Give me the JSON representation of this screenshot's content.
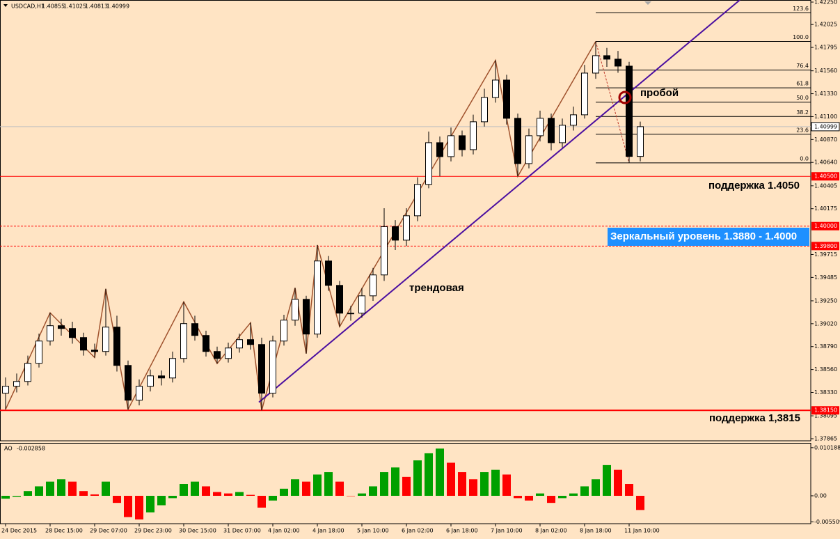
{
  "chart_data": {
    "type": "candlestick",
    "title": "USDCAD,H1",
    "header": {
      "open": 1.40855,
      "high": 1.41025,
      "low": 1.40813,
      "close": 1.40999
    },
    "categories": [
      "24 Dec 2015",
      null,
      null,
      null,
      "28 Dec 15:00",
      null,
      null,
      null,
      "29 Dec 07:00",
      null,
      null,
      null,
      "29 Dec 23:00",
      null,
      null,
      null,
      "30 Dec 15:00",
      null,
      null,
      null,
      "31 Dec 07:00",
      null,
      null,
      null,
      "4 Jan 02:00",
      null,
      null,
      null,
      "4 Jan 18:00",
      null,
      null,
      null,
      "5 Jan 10:00",
      null,
      null,
      null,
      "6 Jan 02:00",
      null,
      null,
      null,
      "6 Jan 18:00",
      null,
      null,
      null,
      "7 Jan 10:00",
      null,
      null,
      null,
      "8 Jan 02:00",
      null,
      null,
      null,
      "8 Jan 18:00",
      null,
      null,
      null,
      "11 Jan 10:00",
      null
    ],
    "open": [
      1.38322,
      1.38392,
      1.3844,
      1.38622,
      1.38846,
      1.39,
      1.38972,
      1.38881,
      1.38755,
      1.38741,
      1.38986,
      1.38601,
      1.38252,
      1.38392,
      1.38496,
      1.38475,
      1.38671,
      1.39021,
      1.38902,
      1.38741,
      1.38671,
      1.38776,
      1.3886,
      1.38811,
      1.38322,
      1.38846,
      1.39056,
      1.39265,
      1.38916,
      1.3965,
      1.39405,
      1.39126,
      1.39126,
      1.393,
      1.3951,
      1.39995,
      1.39859,
      1.40104,
      1.40419,
      1.40838,
      1.40698,
      1.40908,
      1.40768,
      1.41048,
      1.41292,
      1.41467,
      1.41083,
      1.40628,
      1.40908,
      1.41083,
      1.40838,
      1.41013,
      1.41118,
      1.41537,
      1.41712,
      1.41677,
      1.41607,
      1.407
    ],
    "high": [
      1.3848,
      1.3852,
      1.387,
      1.3892,
      1.3913,
      1.3907,
      1.3904,
      1.3893,
      1.3882,
      1.3937,
      1.391,
      1.3865,
      1.3846,
      1.3856,
      1.3855,
      1.3874,
      1.3924,
      1.391,
      1.3895,
      1.3879,
      1.3883,
      1.3892,
      1.3903,
      1.3888,
      1.389,
      1.3911,
      1.3938,
      1.393,
      1.3981,
      1.397,
      1.3945,
      1.392,
      1.3938,
      1.3958,
      1.4018,
      1.4006,
      1.4018,
      1.4049,
      1.4095,
      1.409,
      1.4099,
      1.4096,
      1.4112,
      1.4138,
      1.41665,
      1.4152,
      1.4113,
      1.4098,
      1.4116,
      1.4113,
      1.4108,
      1.412,
      1.4162,
      1.41855,
      1.4179,
      1.4176,
      1.4165,
      1.4105
    ],
    "low": [
      1.3816,
      1.3833,
      1.384,
      1.3858,
      1.388,
      1.389,
      1.3882,
      1.387,
      1.3868,
      1.387,
      1.3854,
      1.3816,
      1.382,
      1.3834,
      1.384,
      1.3843,
      1.3863,
      1.3885,
      1.3869,
      1.3862,
      1.3863,
      1.3873,
      1.3876,
      1.3815,
      1.3828,
      1.388,
      1.39,
      1.3872,
      1.3888,
      1.3935,
      1.3899,
      1.3905,
      1.3908,
      1.3925,
      1.3945,
      1.3976,
      1.398,
      1.4005,
      1.4038,
      1.405,
      1.4065,
      1.407,
      1.4072,
      1.41,
      1.4124,
      1.4102,
      1.405,
      1.4058,
      1.4085,
      1.4076,
      1.4079,
      1.4096,
      1.4108,
      1.4148,
      1.416,
      1.4154,
      1.40635,
      1.4065
    ],
    "close": [
      1.38392,
      1.3844,
      1.38622,
      1.38846,
      1.39,
      1.38972,
      1.38881,
      1.38755,
      1.38741,
      1.38986,
      1.38601,
      1.38252,
      1.38392,
      1.38496,
      1.38475,
      1.38671,
      1.39021,
      1.38902,
      1.38741,
      1.38671,
      1.38776,
      1.3886,
      1.38811,
      1.38322,
      1.38846,
      1.39056,
      1.39265,
      1.38916,
      1.3965,
      1.39405,
      1.39126,
      1.39126,
      1.393,
      1.3951,
      1.39995,
      1.39859,
      1.40104,
      1.40419,
      1.40838,
      1.40698,
      1.40908,
      1.40768,
      1.41048,
      1.41292,
      1.41467,
      1.41083,
      1.40628,
      1.40908,
      1.41083,
      1.40838,
      1.41013,
      1.41118,
      1.41537,
      1.41712,
      1.41677,
      1.41607,
      1.407,
      1.40999
    ],
    "bull_color": "#ffffff",
    "bear_color": "#000000",
    "ylim": [
      1.37844,
      1.42271
    ],
    "yticks": [
      {
        "value": 1.4225,
        "label": "1.42250"
      },
      1.42025,
      1.41795,
      {
        "value": 1.4156,
        "label": "1.41560"
      },
      {
        "value": 1.4133,
        "label": "1.41330"
      },
      {
        "value": 1.411,
        "label": "1.41100"
      },
      {
        "value": 1.4087,
        "label": "1.40870"
      },
      {
        "value": 1.4064,
        "label": "1.40640"
      },
      1.40405,
      1.40175,
      1.39715,
      1.39485,
      {
        "value": 1.3925,
        "label": "1.39250"
      },
      {
        "value": 1.3902,
        "label": "1.39020"
      },
      {
        "value": 1.3879,
        "label": "1.38790"
      },
      {
        "value": 1.3856,
        "label": "1.38560"
      },
      {
        "value": 1.3833,
        "label": "1.38330"
      },
      1.38095,
      1.37865
    ],
    "levels": [
      {
        "value": 1.405,
        "label": "1.40500",
        "style": "solid"
      },
      {
        "value": 1.4,
        "label": "1.40000",
        "style": "dashed"
      },
      {
        "value": 1.398,
        "label": "1.39800",
        "style": "dashed"
      },
      {
        "value": 1.3815,
        "label": "1.38150",
        "style": "bold"
      }
    ],
    "level_color": "#ff0000",
    "fib": {
      "start": 53,
      "from": 1.40635,
      "to": 1.41855,
      "color": "#000000",
      "levels": [
        {
          "value": 0,
          "label": "0.0"
        },
        23.6,
        38.2,
        {
          "value": 50,
          "label": "50.0"
        },
        61.8,
        76.4,
        {
          "value": 100,
          "label": "100.0"
        },
        123.6
      ]
    },
    "trendline": {
      "color": "#4b0fa0",
      "x": [
        22.75,
        65.94
      ],
      "y": [
        1.38231,
        1.42271
      ]
    },
    "zigzag": {
      "color": "#a0522d",
      "x": [
        0,
        4,
        8,
        9,
        11,
        16,
        19,
        22,
        23,
        26,
        27,
        28,
        30,
        44,
        46,
        53
      ],
      "y": [
        1.3816,
        1.3913,
        1.3868,
        1.3937,
        1.3816,
        1.3924,
        1.3862,
        1.3903,
        1.3815,
        1.3938,
        1.3872,
        1.3981,
        1.3899,
        1.41665,
        1.405,
        1.41855
      ]
    },
    "projection": {
      "color": "#c0392b",
      "x": [
        53,
        56
      ],
      "y": [
        1.41855,
        1.40635
      ]
    },
    "annotations": {
      "break": "пробой",
      "trend": "трендовая",
      "support_high": "поддержка 1.4050",
      "mirror": "Зеркальный уровень 1.3880 - 1.4000",
      "support_low": "поддержка 1,3815"
    },
    "indicator": {
      "type": "bar",
      "name": "AO",
      "current": -0.002858,
      "values": [
        -0.0006,
        -0.0002,
        0.001,
        0.002,
        0.003,
        0.0035,
        0.003,
        0.001,
        0.0003,
        0.003,
        -0.0015,
        -0.0045,
        -0.005,
        -0.0035,
        -0.002,
        -0.0005,
        0.0025,
        0.003,
        0.002,
        0.0008,
        0.0005,
        0.0008,
        0.0002,
        -0.0025,
        -0.001,
        0.0015,
        0.0035,
        0.003,
        0.0045,
        0.005,
        0.003,
        0.0,
        0.0005,
        0.002,
        0.005,
        0.006,
        0.004,
        0.0075,
        0.009,
        0.01,
        0.007,
        0.005,
        0.0035,
        0.005,
        0.0055,
        0.0045,
        -0.0005,
        -0.001,
        0.0005,
        -0.0015,
        -0.0005,
        0.0005,
        0.002,
        0.0035,
        0.0065,
        0.0055,
        0.0025,
        -0.003
      ],
      "ylim": [
        -0.0059,
        0.0112
      ],
      "yticks": [
        0.010188,
        {
          "value": 0,
          "label": "0.00"
        },
        -0.005509
      ],
      "up_color": "#00a000",
      "down_color": "#ff0000"
    }
  }
}
